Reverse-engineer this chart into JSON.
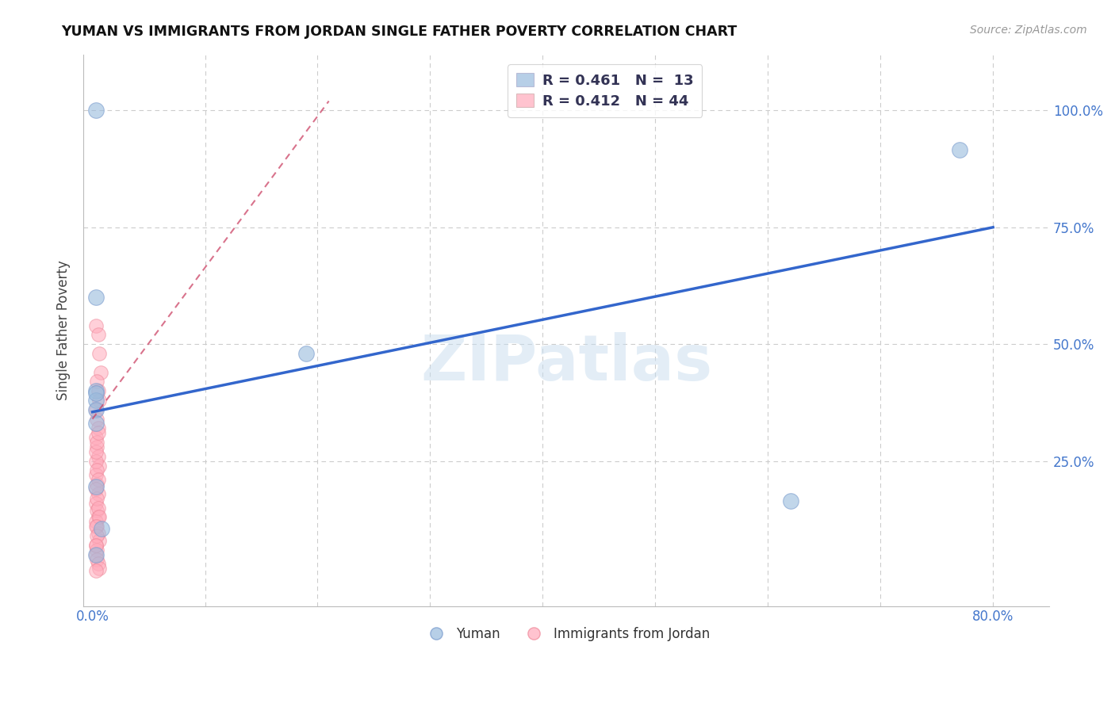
{
  "title": "YUMAN VS IMMIGRANTS FROM JORDAN SINGLE FATHER POVERTY CORRELATION CHART",
  "source": "Source: ZipAtlas.com",
  "ylabel": "Single Father Poverty",
  "xlim": [
    -0.008,
    0.85
  ],
  "ylim": [
    -0.06,
    1.12
  ],
  "blue_color": "#99BBDD",
  "blue_edge": "#7799CC",
  "pink_color": "#FFAABB",
  "pink_edge": "#EE8899",
  "trend_blue": "#3366CC",
  "trend_pink": "#CC4466",
  "watermark": "ZIPatlas",
  "watermark_color": "#C8DDEF",
  "label_color": "#4477CC",
  "dark_label": "#333355",
  "legend_r1": "R = 0.461",
  "legend_n1": "N = 13",
  "legend_r2": "R = 0.412",
  "legend_n2": "N = 44",
  "blue_x": [
    0.003,
    0.003,
    0.003,
    0.003,
    0.003,
    0.003,
    0.003,
    0.008,
    0.003,
    0.003,
    0.19,
    0.62,
    0.77
  ],
  "blue_y": [
    1.0,
    0.6,
    0.4,
    0.38,
    0.36,
    0.33,
    0.195,
    0.105,
    0.395,
    0.05,
    0.48,
    0.165,
    0.915
  ],
  "pink_x": [
    0.003,
    0.005,
    0.006,
    0.007,
    0.004,
    0.005,
    0.006,
    0.003,
    0.004,
    0.005,
    0.003,
    0.004,
    0.005,
    0.006,
    0.003,
    0.004,
    0.005,
    0.003,
    0.004,
    0.005,
    0.003,
    0.004,
    0.005,
    0.006,
    0.003,
    0.004,
    0.003,
    0.004,
    0.005,
    0.006,
    0.003,
    0.004,
    0.005,
    0.003,
    0.004,
    0.005,
    0.006,
    0.003,
    0.004,
    0.003,
    0.003,
    0.004,
    0.005,
    0.003
  ],
  "pink_y": [
    0.54,
    0.52,
    0.48,
    0.44,
    0.42,
    0.4,
    0.38,
    0.36,
    0.34,
    0.32,
    0.3,
    0.28,
    0.26,
    0.24,
    0.22,
    0.2,
    0.18,
    0.16,
    0.145,
    0.13,
    0.12,
    0.11,
    0.095,
    0.08,
    0.07,
    0.06,
    0.05,
    0.04,
    0.03,
    0.02,
    0.25,
    0.23,
    0.21,
    0.19,
    0.17,
    0.15,
    0.13,
    0.11,
    0.09,
    0.07,
    0.27,
    0.29,
    0.31,
    0.015
  ],
  "blue_trend_x": [
    0.0,
    0.8
  ],
  "blue_trend_y": [
    0.355,
    0.75
  ],
  "pink_trend_x": [
    0.0,
    0.21
  ],
  "pink_trend_y": [
    0.34,
    1.02
  ]
}
